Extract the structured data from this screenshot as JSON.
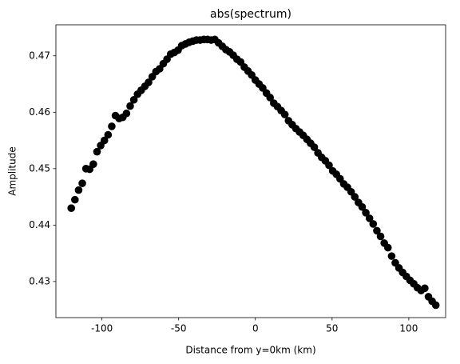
{
  "chart_data": {
    "type": "scatter",
    "title": "abs(spectrum)",
    "xlabel": "Distance from y=0km (km)",
    "ylabel": "Amplitude",
    "color": "#000000",
    "x": [
      -120,
      -117.6,
      -115.2,
      -112.8,
      -110.4,
      -108,
      -105.6,
      -103.2,
      -100.8,
      -98.4,
      -96,
      -93.6,
      -91.2,
      -88.8,
      -86.4,
      -84,
      -81.6,
      -79.2,
      -76.8,
      -74.4,
      -72,
      -69.6,
      -67.2,
      -64.8,
      -62.4,
      -60,
      -57.6,
      -55.2,
      -52.8,
      -50.4,
      -48,
      -45.6,
      -43.2,
      -40.8,
      -38.4,
      -36,
      -33.6,
      -31.2,
      -28.8,
      -26.4,
      -24,
      -21.6,
      -19.2,
      -16.8,
      -14.4,
      -12,
      -9.6,
      -7.2,
      -4.8,
      -2.4,
      0,
      2.4,
      4.8,
      7.2,
      9.6,
      12,
      14.4,
      16.8,
      19.2,
      21.6,
      24,
      26.4,
      28.8,
      31.2,
      33.6,
      36,
      38.4,
      40.8,
      43.2,
      45.6,
      48,
      50.4,
      52.8,
      55.2,
      57.6,
      60,
      62.4,
      64.8,
      67.2,
      69.6,
      72,
      74.4,
      76.8,
      79.2,
      81.6,
      84,
      86.4,
      88.8,
      91.2,
      93.6,
      96,
      98.4,
      100.8,
      103.2,
      105.6,
      108,
      110.4,
      112.8,
      115.2,
      117.6
    ],
    "values": [
      0.443,
      0.4445,
      0.4462,
      0.4474,
      0.45,
      0.4499,
      0.4508,
      0.453,
      0.4541,
      0.455,
      0.456,
      0.4575,
      0.4594,
      0.4589,
      0.4591,
      0.4598,
      0.4611,
      0.4622,
      0.4632,
      0.4639,
      0.4646,
      0.4653,
      0.4663,
      0.4672,
      0.4677,
      0.4686,
      0.4694,
      0.4703,
      0.4706,
      0.471,
      0.4718,
      0.4721,
      0.4724,
      0.4726,
      0.4728,
      0.4728,
      0.4729,
      0.4729,
      0.4728,
      0.4729,
      0.4723,
      0.4717,
      0.4711,
      0.4707,
      0.4701,
      0.4694,
      0.4689,
      0.468,
      0.4673,
      0.4666,
      0.4657,
      0.465,
      0.4643,
      0.4634,
      0.4626,
      0.4616,
      0.461,
      0.4603,
      0.4596,
      0.4585,
      0.4578,
      0.4571,
      0.4565,
      0.4559,
      0.4552,
      0.4545,
      0.4538,
      0.4528,
      0.452,
      0.4514,
      0.4506,
      0.4496,
      0.449,
      0.4482,
      0.4473,
      0.4467,
      0.4459,
      0.445,
      0.444,
      0.4432,
      0.4422,
      0.4412,
      0.4402,
      0.439,
      0.438,
      0.4368,
      0.436,
      0.4345,
      0.4333,
      0.4324,
      0.4316,
      0.4309,
      0.4302,
      0.4296,
      0.4289,
      0.4284,
      0.4288,
      0.4273,
      0.4265,
      0.4258
    ],
    "xlim": [
      -130,
      124
    ],
    "ylim": [
      0.4236,
      0.4755
    ],
    "xticks": [
      -100,
      -50,
      0,
      50,
      100
    ],
    "yticks": [
      0.43,
      0.44,
      0.45,
      0.46,
      0.47
    ]
  }
}
